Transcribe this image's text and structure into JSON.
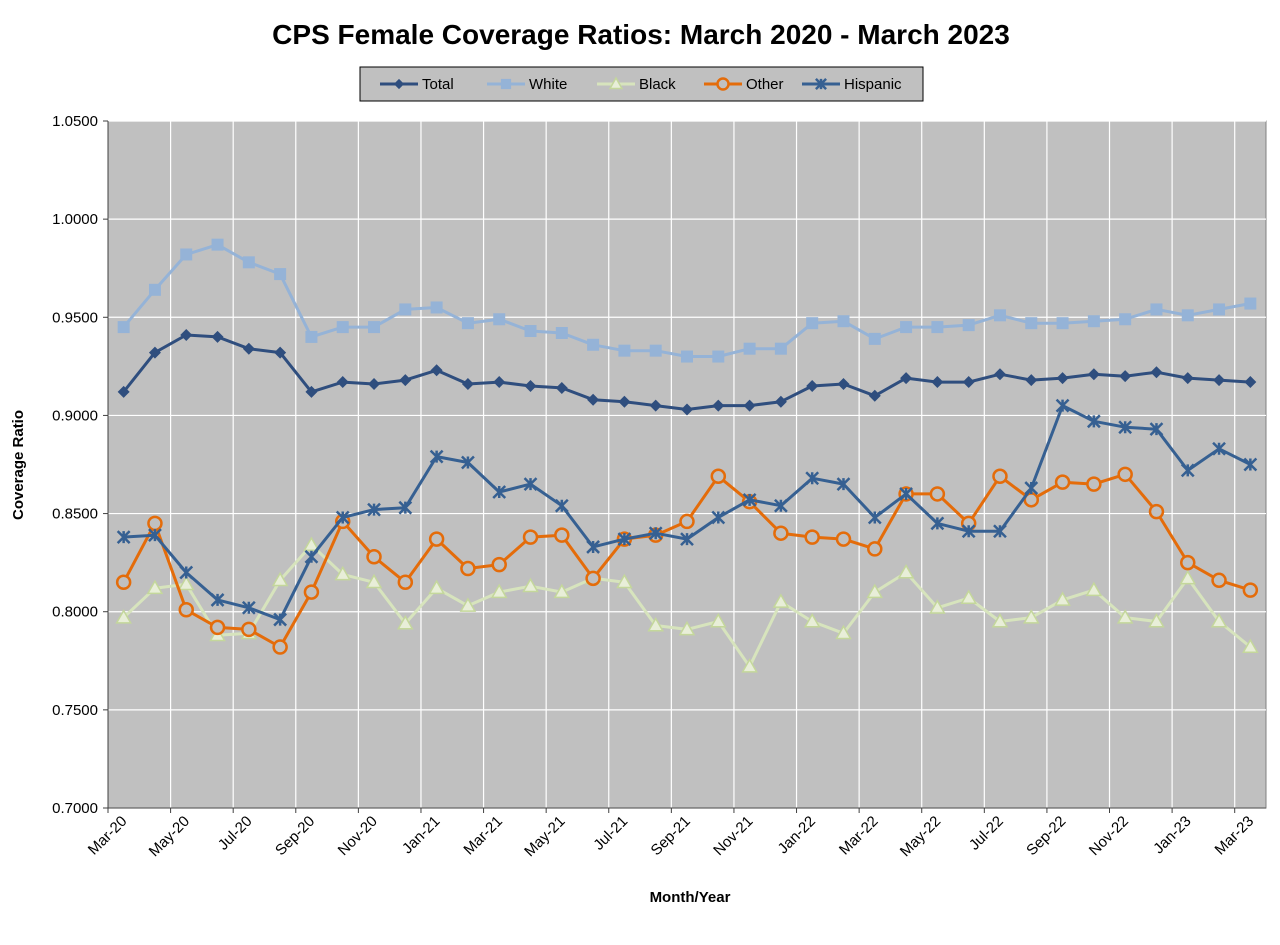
{
  "colors": {
    "plot_bg": "#c0c0c0",
    "grid": "#ffffff",
    "Total": "#2f4e7e",
    "White": "#95b3d7",
    "Black": "#d7e4bd",
    "Other": "#e46c0a",
    "Hispanic": "#366092"
  },
  "chart_data": {
    "type": "line",
    "title": "CPS Female Coverage Ratios: March 2020 - March 2023",
    "xlabel": "Month/Year",
    "ylabel": "Coverage Ratio",
    "ylim": [
      0.7,
      1.05
    ],
    "yticks": [
      "0.7000",
      "0.7500",
      "0.8000",
      "0.8500",
      "0.9000",
      "0.9500",
      "1.0000",
      "1.0500"
    ],
    "grid": true,
    "legend_position": "top-center",
    "x": [
      "Mar-20",
      "Apr-20",
      "May-20",
      "Jun-20",
      "Jul-20",
      "Aug-20",
      "Sep-20",
      "Oct-20",
      "Nov-20",
      "Dec-20",
      "Jan-21",
      "Feb-21",
      "Mar-21",
      "Apr-21",
      "May-21",
      "Jun-21",
      "Jul-21",
      "Aug-21",
      "Sep-21",
      "Oct-21",
      "Nov-21",
      "Dec-21",
      "Jan-22",
      "Feb-22",
      "Mar-22",
      "Apr-22",
      "May-22",
      "Jun-22",
      "Jul-22",
      "Aug-22",
      "Sep-22",
      "Oct-22",
      "Nov-22",
      "Dec-22",
      "Jan-23",
      "Feb-23",
      "Mar-23"
    ],
    "xticks": [
      "Mar-20",
      "May-20",
      "Jul-20",
      "Sep-20",
      "Nov-20",
      "Jan-21",
      "Mar-21",
      "May-21",
      "Jul-21",
      "Sep-21",
      "Nov-21",
      "Jan-22",
      "Mar-22",
      "May-22",
      "Jul-22",
      "Sep-22",
      "Nov-22",
      "Jan-23",
      "Mar-23"
    ],
    "series": [
      {
        "name": "Total",
        "marker": "diamond",
        "values": [
          0.912,
          0.932,
          0.941,
          0.94,
          0.934,
          0.932,
          0.912,
          0.917,
          0.916,
          0.918,
          0.923,
          0.916,
          0.917,
          0.915,
          0.914,
          0.908,
          0.907,
          0.905,
          0.903,
          0.905,
          0.905,
          0.907,
          0.915,
          0.916,
          0.91,
          0.919,
          0.917,
          0.917,
          0.921,
          0.918,
          0.919,
          0.921,
          0.92,
          0.922,
          0.919,
          0.918,
          0.917
        ]
      },
      {
        "name": "White",
        "marker": "square",
        "values": [
          0.945,
          0.964,
          0.982,
          0.987,
          0.978,
          0.972,
          0.94,
          0.945,
          0.945,
          0.954,
          0.955,
          0.947,
          0.949,
          0.943,
          0.942,
          0.936,
          0.933,
          0.933,
          0.93,
          0.93,
          0.934,
          0.934,
          0.947,
          0.948,
          0.939,
          0.945,
          0.945,
          0.946,
          0.951,
          0.947,
          0.947,
          0.948,
          0.949,
          0.954,
          0.951,
          0.954,
          0.957
        ]
      },
      {
        "name": "Black",
        "marker": "triangle",
        "values": [
          0.797,
          0.812,
          0.814,
          0.788,
          0.789,
          0.816,
          0.834,
          0.819,
          0.815,
          0.794,
          0.812,
          0.803,
          0.81,
          0.813,
          0.81,
          0.817,
          0.815,
          0.793,
          0.791,
          0.795,
          0.772,
          0.805,
          0.795,
          0.789,
          0.81,
          0.82,
          0.802,
          0.807,
          0.795,
          0.797,
          0.806,
          0.811,
          0.797,
          0.795,
          0.817,
          0.795,
          0.782
        ]
      },
      {
        "name": "Other",
        "marker": "circle",
        "values": [
          0.815,
          0.845,
          0.801,
          0.792,
          0.791,
          0.782,
          0.81,
          0.846,
          0.828,
          0.815,
          0.837,
          0.822,
          0.824,
          0.838,
          0.839,
          0.817,
          0.837,
          0.839,
          0.846,
          0.869,
          0.856,
          0.84,
          0.838,
          0.837,
          0.832,
          0.86,
          0.86,
          0.845,
          0.869,
          0.857,
          0.866,
          0.865,
          0.87,
          0.851,
          0.825,
          0.816,
          0.811
        ]
      },
      {
        "name": "Hispanic",
        "marker": "star",
        "values": [
          0.838,
          0.839,
          0.82,
          0.806,
          0.802,
          0.796,
          0.828,
          0.848,
          0.852,
          0.853,
          0.879,
          0.876,
          0.861,
          0.865,
          0.854,
          0.833,
          0.837,
          0.84,
          0.837,
          0.848,
          0.857,
          0.854,
          0.868,
          0.865,
          0.848,
          0.86,
          0.845,
          0.841,
          0.841,
          0.863,
          0.905,
          0.897,
          0.894,
          0.893,
          0.872,
          0.883,
          0.875
        ]
      }
    ]
  }
}
